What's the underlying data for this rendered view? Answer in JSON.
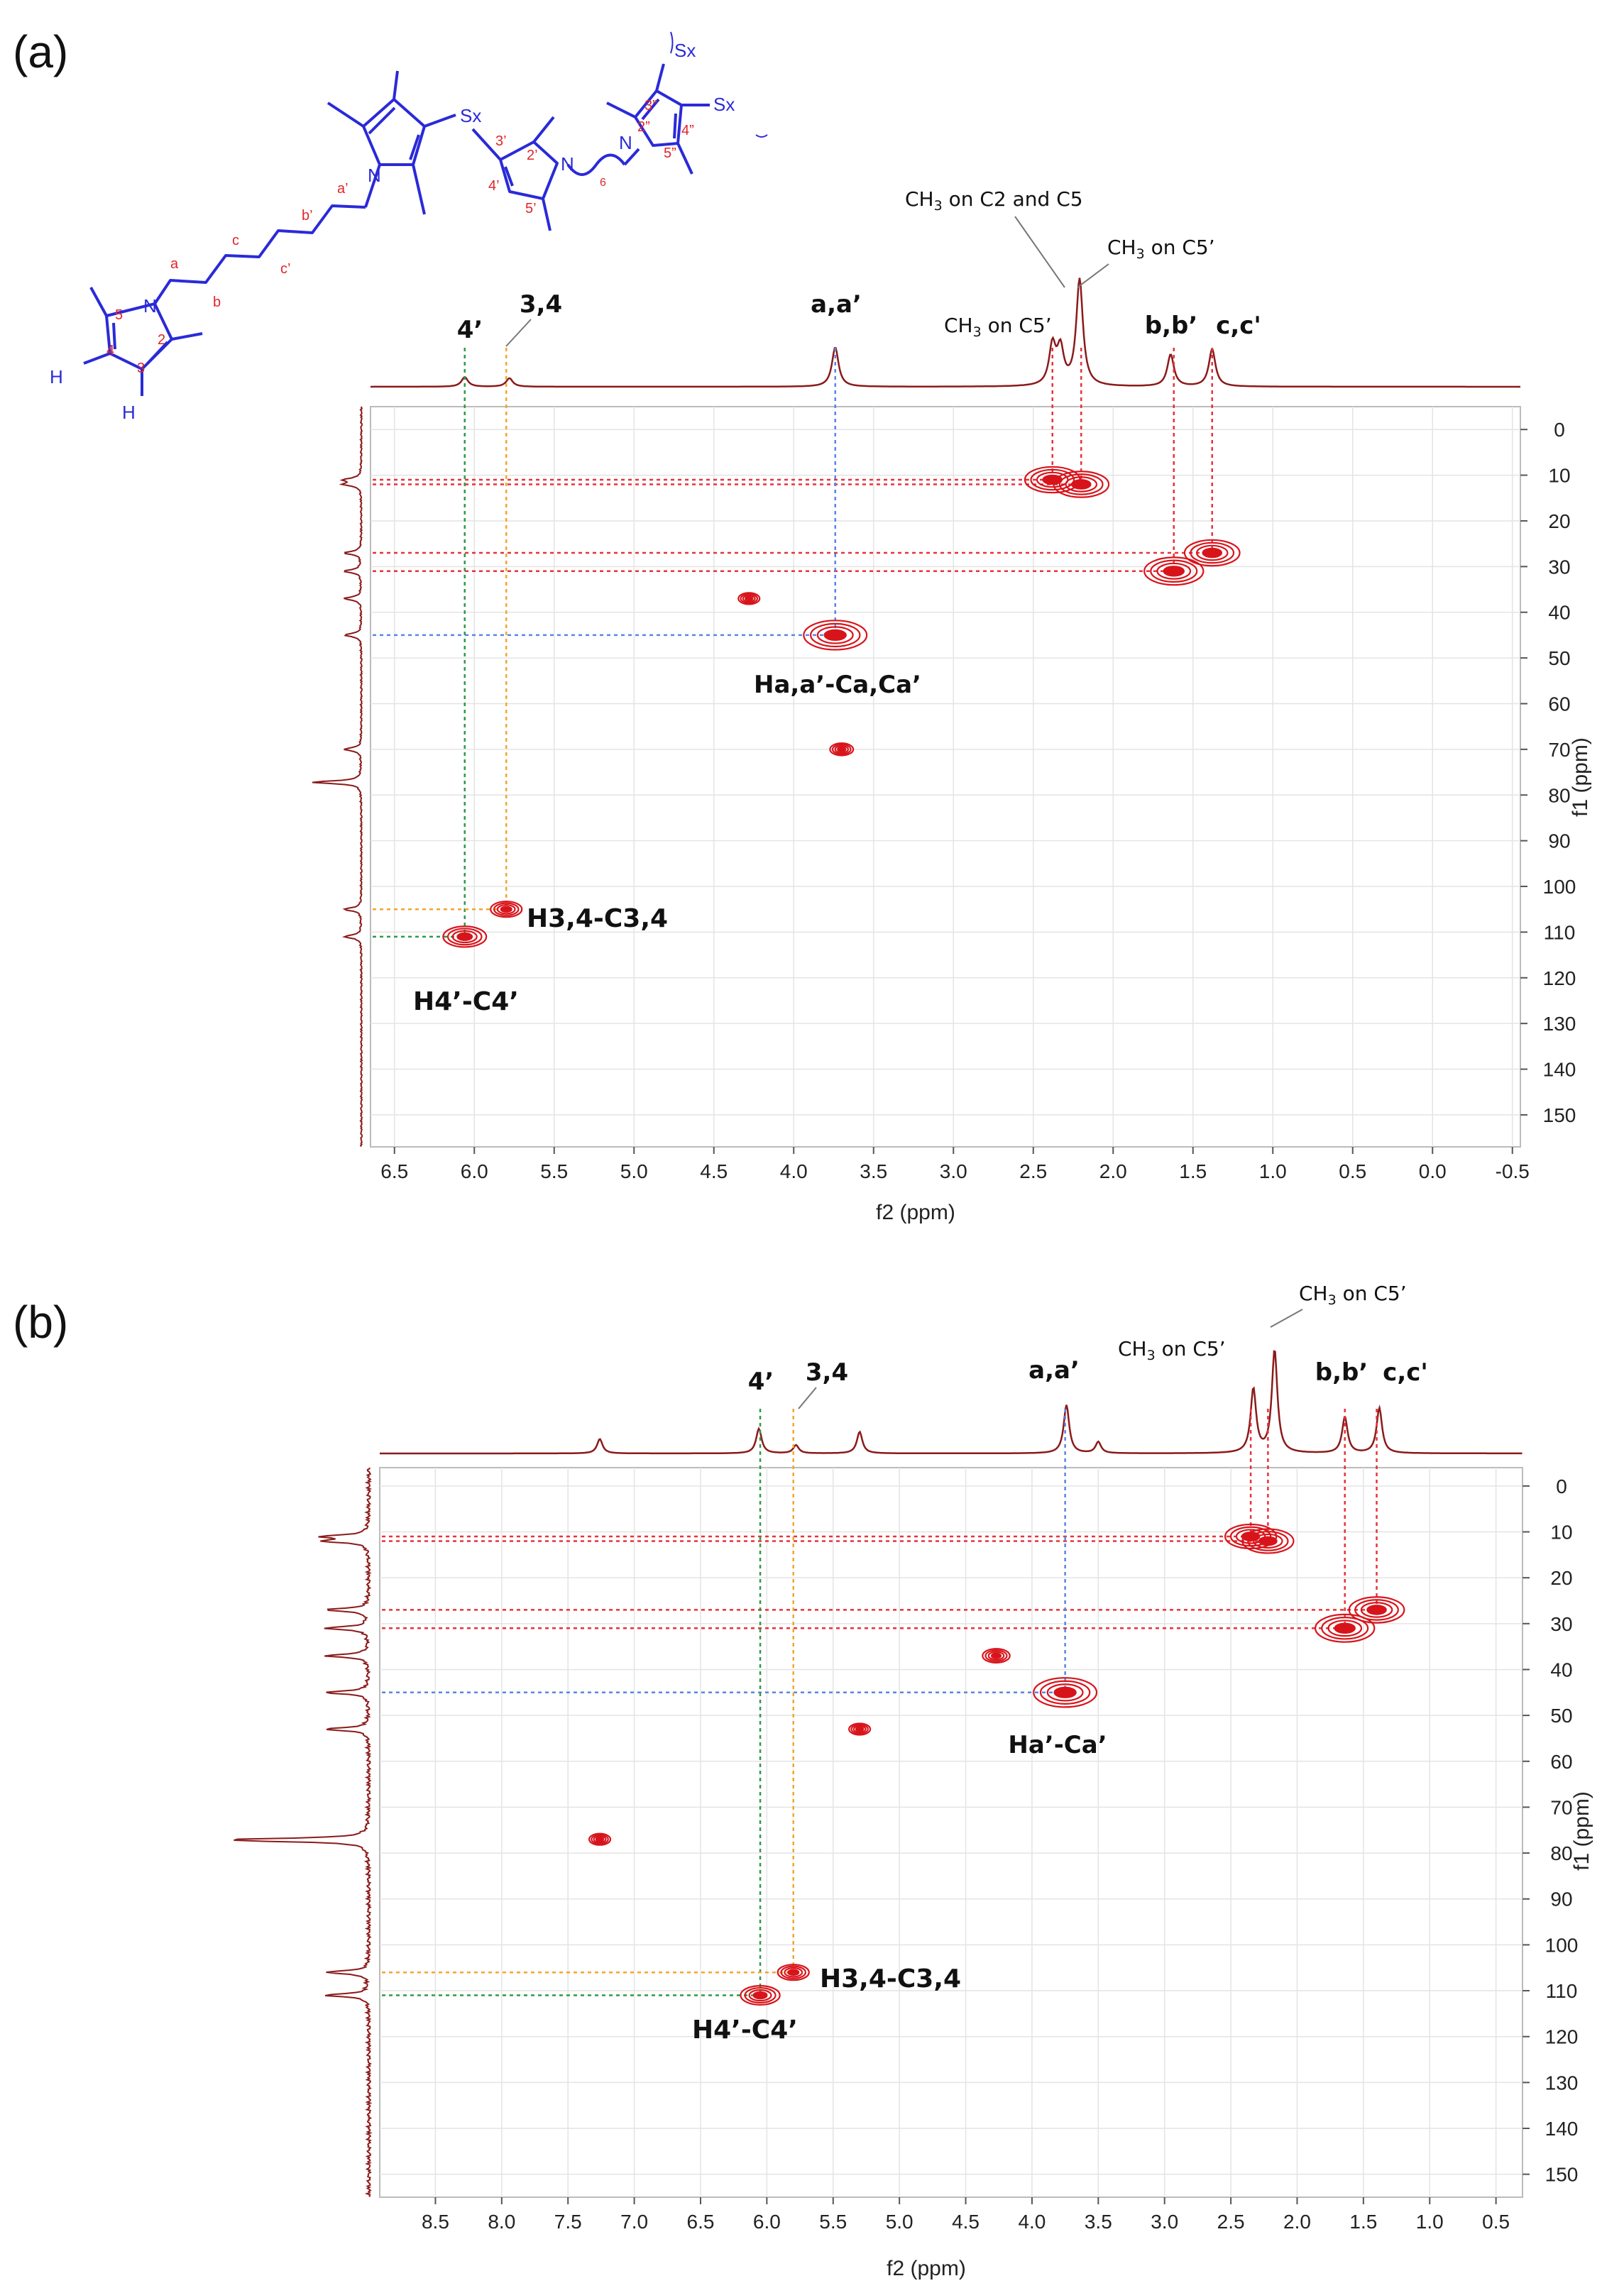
{
  "chart_data": [
    {
      "type": "scatter",
      "panel_label": "(a)",
      "title": "",
      "xlabel": "f2 (ppm)",
      "ylabel": "f1 (ppm)",
      "xlim": [
        6.65,
        -0.55
      ],
      "ylim": [
        -5,
        157
      ],
      "x_ticks": [
        "6.5",
        "6.0",
        "5.5",
        "5.0",
        "4.5",
        "4.0",
        "3.5",
        "3.0",
        "2.5",
        "2.0",
        "1.5",
        "1.0",
        "0.5",
        "0.0",
        "-0.5"
      ],
      "y_ticks": [
        "0",
        "10",
        "20",
        "30",
        "40",
        "50",
        "60",
        "70",
        "80",
        "90",
        "100",
        "110",
        "120",
        "130",
        "140",
        "150"
      ],
      "cross_peaks": [
        {
          "x": 2.38,
          "y": 11,
          "size": 2.2
        },
        {
          "x": 2.2,
          "y": 12,
          "size": 2.2
        },
        {
          "x": 1.62,
          "y": 31,
          "size": 2.4
        },
        {
          "x": 1.38,
          "y": 27,
          "size": 2.2
        },
        {
          "x": 3.74,
          "y": 45,
          "size": 2.6
        },
        {
          "x": 6.06,
          "y": 111,
          "size": 1.6
        },
        {
          "x": 5.8,
          "y": 105,
          "size": 1.0
        },
        {
          "x": 4.28,
          "y": 37,
          "size": 0.5
        },
        {
          "x": 3.7,
          "y": 70,
          "size": 0.6
        }
      ],
      "h1_peaks": [
        {
          "x": 6.06,
          "h": 0.09
        },
        {
          "x": 5.78,
          "h": 0.08
        },
        {
          "x": 3.74,
          "h": 0.37
        },
        {
          "x": 2.38,
          "h": 0.37
        },
        {
          "x": 2.33,
          "h": 0.33
        },
        {
          "x": 2.21,
          "h": 1.0
        },
        {
          "x": 1.64,
          "h": 0.3
        },
        {
          "x": 1.38,
          "h": 0.35
        }
      ],
      "peak_labels": [
        "4’",
        "3,4",
        "a,a’",
        "CH3 on C5’",
        "CH3 on C2 and C5",
        "CH3 on C5’",
        "b,b’",
        "c,c'"
      ],
      "annotations": [
        "Ha,a’-Ca,Ca’",
        "H3,4-C3,4",
        "H4’-C4’"
      ]
    },
    {
      "type": "scatter",
      "panel_label": "(b)",
      "title": "",
      "xlabel": "f2 (ppm)",
      "ylabel": "f1 (ppm)",
      "xlim": [
        8.92,
        0.3
      ],
      "ylim": [
        -4,
        155
      ],
      "x_ticks": [
        "8.5",
        "8.0",
        "7.5",
        "7.0",
        "6.5",
        "6.0",
        "5.5",
        "5.0",
        "4.5",
        "4.0",
        "3.5",
        "3.0",
        "2.5",
        "2.0",
        "1.5",
        "1.0",
        "0.5"
      ],
      "y_ticks": [
        "0",
        "10",
        "20",
        "30",
        "40",
        "50",
        "60",
        "70",
        "80",
        "90",
        "100",
        "110",
        "120",
        "130",
        "140",
        "150"
      ],
      "cross_peaks": [
        {
          "x": 2.35,
          "y": 11,
          "size": 2.0
        },
        {
          "x": 2.22,
          "y": 12,
          "size": 2.0
        },
        {
          "x": 1.64,
          "y": 31,
          "size": 2.4
        },
        {
          "x": 1.4,
          "y": 27,
          "size": 2.2
        },
        {
          "x": 3.75,
          "y": 45,
          "size": 2.6
        },
        {
          "x": 6.05,
          "y": 111,
          "size": 1.4
        },
        {
          "x": 5.8,
          "y": 106,
          "size": 1.0
        },
        {
          "x": 4.27,
          "y": 37,
          "size": 0.8
        },
        {
          "x": 5.3,
          "y": 53,
          "size": 0.5
        },
        {
          "x": 7.26,
          "y": 77,
          "size": 0.5
        }
      ],
      "h1_peaks": [
        {
          "x": 7.26,
          "h": 0.14
        },
        {
          "x": 6.06,
          "h": 0.24
        },
        {
          "x": 5.78,
          "h": 0.08
        },
        {
          "x": 5.3,
          "h": 0.21
        },
        {
          "x": 3.74,
          "h": 0.47
        },
        {
          "x": 3.5,
          "h": 0.11
        },
        {
          "x": 2.33,
          "h": 0.62
        },
        {
          "x": 2.17,
          "h": 1.0
        },
        {
          "x": 1.64,
          "h": 0.35
        },
        {
          "x": 1.38,
          "h": 0.44
        }
      ],
      "peak_labels": [
        "4’",
        "3,4",
        "a,a’",
        "CH3 on C5’",
        "CH3 on C5’",
        "b,b’",
        "c,c'"
      ],
      "annotations": [
        "Ha’-Ca’",
        "H3,4-C3,4",
        "H4’-C4’"
      ]
    }
  ],
  "molecule": {
    "atoms": [
      "N",
      "N",
      "N",
      "N",
      "H",
      "H",
      "Sx",
      "Sx",
      "Sx"
    ],
    "numbers": [
      "a",
      "b",
      "c",
      "b’",
      "c’",
      "a’",
      "5",
      "4",
      "3",
      "2",
      "3’",
      "2’",
      "4’",
      "5’",
      "3”",
      "2”",
      "4”",
      "5”"
    ],
    "chain_subscript": "6"
  },
  "colors": {
    "spectrum": "#8b1a1a",
    "peak": "#d8141b",
    "peak_blue": "#1a1aff",
    "guide_red": "#e8323a",
    "guide_blue": "#5a86e0",
    "guide_green": "#2e9a4a",
    "guide_orange": "#f2a630",
    "structure_blue": "#2a2ad8",
    "structure_red": "#e0242a"
  }
}
